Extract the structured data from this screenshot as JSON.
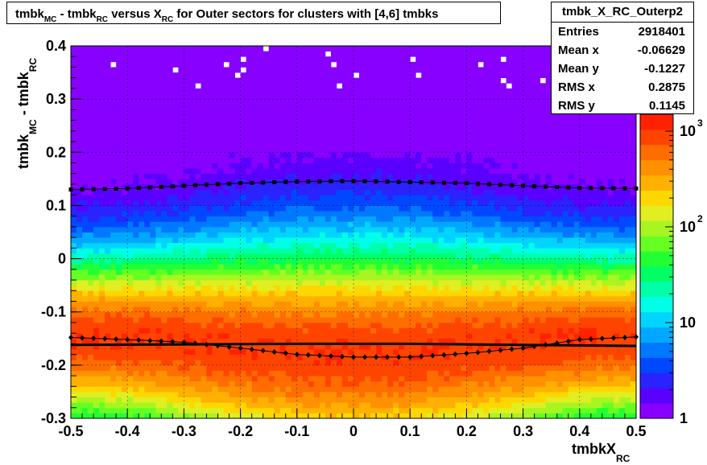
{
  "title": {
    "part1": "tmbk",
    "sub1": "MC",
    "part2": " - tmbk",
    "sub2": "RC",
    "part3": " versus X",
    "sub3": "RC",
    "part4": " for Outer sectors for clusters with [4,6] tmbks"
  },
  "stats": {
    "name": "tmbk_X_RC_Outerp2",
    "rows": [
      {
        "label": "Entries",
        "value": "2918401"
      },
      {
        "label": "Mean x",
        "value": "-0.06629"
      },
      {
        "label": "Mean y",
        "value": "-0.1227"
      },
      {
        "label": "RMS x",
        "value": "0.2875"
      },
      {
        "label": "RMS y",
        "value": "0.1145"
      }
    ]
  },
  "xaxis": {
    "label_main": "tmbkX",
    "label_sub": "RC"
  },
  "yaxis": {
    "label_main1": "tmbk",
    "label_sub1": "MC",
    "label_main2": " - tmbk",
    "label_sub2": "RC"
  },
  "palette_labels": [
    "1",
    "10",
    "10",
    "10"
  ],
  "palette_exponents": [
    "",
    "",
    "2",
    "3"
  ],
  "chart_data": {
    "type": "heatmap",
    "xlim": [
      -0.5,
      0.5
    ],
    "ylim": [
      -0.3,
      0.4
    ],
    "x_ticks": [
      "-0.5",
      "-0.4",
      "-0.3",
      "-0.2",
      "-0.1",
      "0",
      "0.1",
      "0.2",
      "0.3",
      "0.4",
      "0.5"
    ],
    "y_ticks": [
      "-0.3",
      "-0.2",
      "-0.1",
      "0",
      "0.1",
      "0.2",
      "0.3",
      "0.4"
    ],
    "z_scale": "log",
    "zlim": [
      1,
      1500
    ],
    "grid": true,
    "overlays": [
      {
        "name": "",
        "marker": "square",
        "x": [
          -0.5,
          -0.4,
          -0.3,
          -0.2,
          -0.1,
          0.0,
          0.1,
          0.2,
          0.3,
          0.4,
          0.5
        ],
        "y": [
          0.13,
          0.132,
          0.137,
          0.142,
          0.145,
          0.146,
          0.144,
          0.142,
          0.137,
          0.133,
          0.132
        ]
      },
      {
        "name": "",
        "marker": "diamond",
        "x": [
          -0.5,
          -0.4,
          -0.3,
          -0.2,
          -0.1,
          0.0,
          0.1,
          0.2,
          0.3,
          0.4,
          0.5
        ],
        "y": [
          -0.148,
          -0.152,
          -0.157,
          -0.168,
          -0.18,
          -0.185,
          -0.185,
          -0.178,
          -0.168,
          -0.152,
          -0.147
        ]
      },
      {
        "name": "",
        "marker": "line",
        "x": [
          -0.5,
          -0.3,
          -0.1,
          0.1,
          0.3,
          0.5
        ],
        "y": [
          -0.162,
          -0.161,
          -0.16,
          -0.16,
          -0.162,
          -0.164
        ]
      }
    ]
  }
}
